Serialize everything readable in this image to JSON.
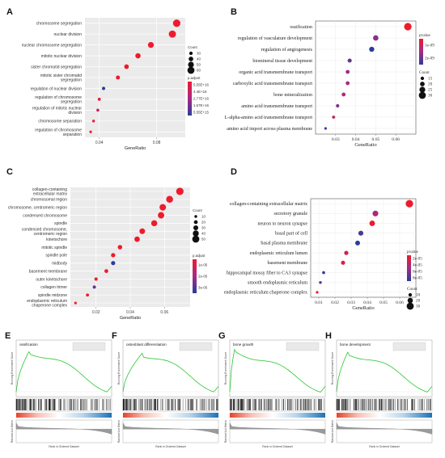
{
  "chart_data": [
    {
      "panel": "A",
      "type": "scatter",
      "style": "sans",
      "xlabel": "GeneRatio",
      "xlim": [
        0.03,
        0.1
      ],
      "xticks": [
        {
          "v": 0.04,
          "label": "0.04"
        },
        {
          "v": 0.08,
          "label": "0.08"
        }
      ],
      "categories": [
        "chromosome segregation",
        "nuclear division",
        "nuclear chromosome segregation",
        "mitotic nuclear division",
        "sister chromatid segregation",
        "mitotic sister chromatid segregation",
        "regulation of nuclear division",
        "regulation of chromosome segregation",
        "regulation of mitotic nuclear division",
        "chromosome separation",
        "regulation of chromosome separation"
      ],
      "gene_ratio": [
        0.094,
        0.091,
        0.076,
        0.067,
        0.059,
        0.053,
        0.043,
        0.04,
        0.039,
        0.036,
        0.034
      ],
      "count": [
        60,
        58,
        48,
        43,
        38,
        34,
        28,
        26,
        25,
        23,
        22
      ],
      "color_value": [
        1e-20,
        1e-20,
        1e-20,
        1e-20,
        1e-20,
        1e-20,
        4e-16,
        1e-20,
        1e-19,
        1e-20,
        1e-20
      ],
      "size_legend": {
        "title": "Count",
        "values": [
          30,
          40,
          50,
          60
        ],
        "labels": [
          "30",
          "40",
          "50",
          "60"
        ]
      },
      "color_legend": {
        "title": "p.adjust",
        "labels": [
          "5.55E+16",
          "4.4E+16",
          "2.77E+16",
          "1.67E+16",
          "5.55E+15"
        ]
      }
    },
    {
      "panel": "B",
      "type": "scatter",
      "style": "serif",
      "xlabel": "GeneRatio",
      "xlim": [
        0.02,
        0.07
      ],
      "xticks": [
        {
          "v": 0.03,
          "label": "0.03"
        },
        {
          "v": 0.04,
          "label": "0.04"
        },
        {
          "v": 0.05,
          "label": "0.05"
        },
        {
          "v": 0.06,
          "label": "0.06"
        }
      ],
      "categories": [
        "ossification",
        "regulation of vasculature development",
        "regulation of angiogenesis",
        "biomineral tissue development",
        "organic acid transmembrane transport",
        "carboxylic acid transmembrane transport",
        "bone mineralization",
        "amino acid transmembrane transport",
        "L-alpha-amino acid transmembrane transport",
        "amino acid import across plasma membrane"
      ],
      "gene_ratio": [
        0.066,
        0.05,
        0.048,
        0.037,
        0.036,
        0.036,
        0.034,
        0.031,
        0.029,
        0.025
      ],
      "count": [
        30,
        22,
        21,
        17,
        16,
        16,
        16,
        14,
        13,
        11
      ],
      "color_value": [
        1e-10,
        8e-10,
        2.8e-09,
        1.3e-09,
        6e-10,
        5e-10,
        4e-10,
        9e-10,
        3e-10,
        1.7e-09
      ],
      "size_legend": {
        "title": "Count",
        "values": [
          15,
          20,
          25,
          30
        ],
        "labels": [
          "15",
          "20",
          "25",
          "30"
        ]
      },
      "color_legend": {
        "title": "pvalue",
        "labels": [
          "1e-09",
          "2e-09"
        ]
      }
    },
    {
      "panel": "C",
      "type": "scatter",
      "style": "sans",
      "xlabel": "GeneRatio",
      "xlim": [
        0.005,
        0.075
      ],
      "xticks": [
        {
          "v": 0.02,
          "label": "0.02"
        },
        {
          "v": 0.04,
          "label": "0.04"
        },
        {
          "v": 0.06,
          "label": "0.06"
        }
      ],
      "categories": [
        "collagen-containing extracellular matrix",
        "chromosomal region",
        "chromosome, centromeric region",
        "condensed chromosome",
        "spindle",
        "condensed chromosome, centromeric region",
        "kinetochore",
        "mitotic spindle",
        "spindle pole",
        "midbody",
        "basement membrane",
        "outer kinetochore",
        "collagen trimer",
        "spindle midzone",
        "endoplasmic reticulum chaperone complex"
      ],
      "gene_ratio": [
        0.069,
        0.063,
        0.059,
        0.058,
        0.054,
        0.047,
        0.044,
        0.034,
        0.03,
        0.03,
        0.026,
        0.02,
        0.019,
        0.015,
        0.008
      ],
      "count": [
        50,
        45,
        42,
        41,
        38,
        34,
        32,
        24,
        22,
        21,
        18,
        14,
        13,
        11,
        7
      ],
      "color_value": [
        2e-07,
        2e-07,
        2e-07,
        2e-07,
        2e-07,
        2e-07,
        2e-07,
        2e-07,
        2e-07,
        4e-05,
        2e-07,
        2e-07,
        1e-05,
        2e-07,
        2e-07
      ],
      "size_legend": {
        "title": "Count",
        "values": [
          10,
          20,
          30,
          40,
          50
        ],
        "labels": [
          "10",
          "20",
          "30",
          "40",
          "50"
        ]
      },
      "color_legend": {
        "title": "p.adjust",
        "labels": [
          "1e-05",
          "2e-05",
          "3e-05"
        ]
      }
    },
    {
      "panel": "D",
      "type": "scatter",
      "style": "serif",
      "xlabel": "GeneRatio",
      "xlim": [
        0.005,
        0.07
      ],
      "xticks": [
        {
          "v": 0.01,
          "label": "0.01"
        },
        {
          "v": 0.02,
          "label": "0.02"
        },
        {
          "v": 0.03,
          "label": "0.03"
        },
        {
          "v": 0.04,
          "label": "0.04"
        },
        {
          "v": 0.05,
          "label": "0.05"
        },
        {
          "v": 0.06,
          "label": "0.06"
        }
      ],
      "categories": [
        "collagen-containing extracellular matrix",
        "secretory granule",
        "neuron to neuron synapse",
        "basal part of cell",
        "basal plasma membrane",
        "endoplasmic reticulum lumen",
        "basement membrane",
        "hippocampal mossy fiber to CA3 synapse",
        "smooth endoplasmic reticulum",
        "endoplasmic reticulum chaperone complex"
      ],
      "gene_ratio": [
        0.066,
        0.045,
        0.043,
        0.036,
        0.034,
        0.027,
        0.025,
        0.013,
        0.011,
        0.009
      ],
      "count": [
        30,
        21,
        20,
        17,
        16,
        13,
        12,
        6,
        5,
        4
      ],
      "color_value": [
        2e-06,
        1e-05,
        2e-06,
        5e-05,
        8.5e-05,
        4e-06,
        3e-06,
        7e-05,
        4e-05,
        2e-06
      ],
      "size_legend": {
        "title": "Count",
        "values": [
          10,
          20,
          30
        ],
        "labels": [
          "10",
          "20",
          "30"
        ]
      },
      "color_legend": {
        "title": "pvalue",
        "labels": [
          "2e-05",
          "4e-05",
          "6e-05",
          "8e-05"
        ]
      }
    }
  ],
  "gsea": [
    {
      "panel": "E",
      "title": "ossification",
      "ylabel_top": "Running Enrichment Score",
      "ylabel_bottom": "Ranked List Metric",
      "xlabel": "Rank in Ordered Dataset",
      "peak": 0.14,
      "peak_height": 0.88
    },
    {
      "panel": "F",
      "title": "osteoblast differentiation",
      "ylabel_top": "Running Enrichment Score",
      "ylabel_bottom": "Ranked List Metric",
      "xlabel": "Rank in Ordered Dataset",
      "peak": 0.2,
      "peak_height": 0.82
    },
    {
      "panel": "G",
      "title": "bone growth",
      "ylabel_top": "Running Enrichment Score",
      "ylabel_bottom": "Ranked List Metric",
      "xlabel": "Rank in Ordered Dataset",
      "peak": 0.05,
      "peak_height": 0.9
    },
    {
      "panel": "H",
      "title": "bone development",
      "ylabel_top": "Running Enrichment Score",
      "ylabel_bottom": "Ranked List Metric",
      "xlabel": "Rank in Ordered Dataset",
      "peak": 0.12,
      "peak_height": 0.86
    }
  ]
}
